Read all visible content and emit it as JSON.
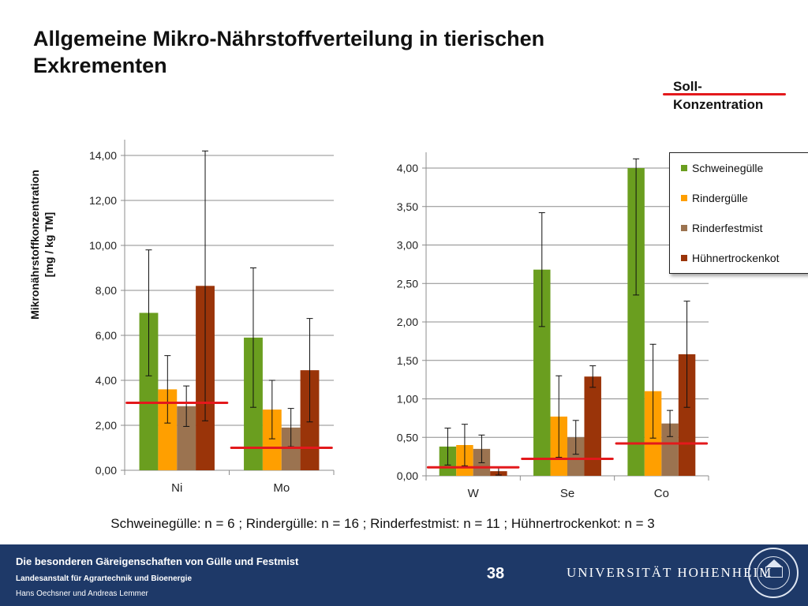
{
  "slide": {
    "title": "Allgemeine Mikro-Nährstoffverteilung in tierischen Exkrementen",
    "soll_label": "Soll-\nKonzentration",
    "sample_note": "Schweinegülle: n = 6 ; Rindergülle: n = 16 ; Rinderfestmist: n = 11 ; Hühnertrockenkot: n = 3"
  },
  "footer": {
    "title": "Die besonderen Gäreigenschaften von Gülle und Festmist",
    "subtitle": "Landesanstalt für Agrartechnik und Bioenergie",
    "authors": "Hans Oechsner  und  Andreas Lemmer",
    "page_number": "38",
    "university": "UNIVERSITÄT HOHENHEIM"
  },
  "colors": {
    "series": [
      "#6a9e1f",
      "#ff9f00",
      "#9b7350",
      "#9a3409"
    ],
    "soll_line": "#e3191c",
    "footer_bg": "#1e3968"
  },
  "chart_data": [
    {
      "type": "bar",
      "title": "",
      "ylabel": "Mikronährstoffkonzentration\n[mg / kg TM]",
      "categories": [
        "Ni",
        "Mo"
      ],
      "ylim": [
        0,
        14
      ],
      "yticks": [
        "0,00",
        "2,00",
        "4,00",
        "6,00",
        "8,00",
        "10,00",
        "12,00",
        "14,00"
      ],
      "series": [
        {
          "name": "Schweinegülle",
          "values": [
            7.0,
            5.9
          ],
          "err": [
            2.8,
            3.1
          ]
        },
        {
          "name": "Rindergülle",
          "values": [
            3.6,
            2.7
          ],
          "err": [
            1.5,
            1.3
          ]
        },
        {
          "name": "Rinderfestmist",
          "values": [
            2.85,
            1.9
          ],
          "err": [
            0.9,
            0.85
          ]
        },
        {
          "name": "Hühnertrockenkot",
          "values": [
            8.2,
            4.45
          ],
          "err": [
            6.0,
            2.3
          ]
        }
      ],
      "soll": [
        3.0,
        1.0
      ]
    },
    {
      "type": "bar",
      "title": "",
      "categories": [
        "W",
        "Se",
        "Co"
      ],
      "ylim": [
        0,
        4
      ],
      "yticks": [
        "0,00",
        "0,50",
        "1,00",
        "1,50",
        "2,00",
        "2,50",
        "3,00",
        "3,50",
        "4,00"
      ],
      "series": [
        {
          "name": "Schweinegülle",
          "values": [
            0.38,
            2.68,
            4.0
          ],
          "err": [
            0.24,
            0.74,
            1.65
          ]
        },
        {
          "name": "Rindergülle",
          "values": [
            0.4,
            0.77,
            1.1
          ],
          "err": [
            0.27,
            0.53,
            0.61
          ]
        },
        {
          "name": "Rinderfestmist",
          "values": [
            0.35,
            0.5,
            0.68
          ],
          "err": [
            0.18,
            0.22,
            0.17
          ]
        },
        {
          "name": "Hühnertrockenkot",
          "values": [
            0.06,
            1.29,
            1.58
          ],
          "err": [
            0.05,
            0.14,
            0.69
          ]
        }
      ],
      "soll": [
        0.11,
        0.22,
        0.42
      ],
      "legend": [
        "Schweinegülle",
        "Rindergülle",
        "Rinderfestmist",
        "Hühnertrockenkot"
      ],
      "legend_position": "top-right"
    }
  ]
}
